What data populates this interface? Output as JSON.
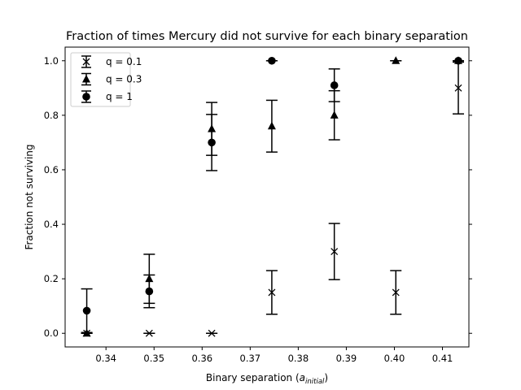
{
  "chart_data": {
    "type": "scatter",
    "title": "Fraction of times Mercury did not survive for each binary separation",
    "xlabel": "Binary separation (",
    "xlabel_math": "a",
    "xlabel_sub": "initial",
    "xlabel_close": ")",
    "ylabel": "Fraction not surviving",
    "xlim": [
      0.3315,
      0.4155
    ],
    "ylim": [
      -0.05,
      1.05
    ],
    "xticks": [
      0.34,
      0.35,
      0.36,
      0.37,
      0.38,
      0.39,
      0.4,
      0.41
    ],
    "xtick_labels": [
      "0.34",
      "0.35",
      "0.36",
      "0.37",
      "0.38",
      "0.39",
      "0.40",
      "0.41"
    ],
    "yticks": [
      0.0,
      0.2,
      0.4,
      0.6,
      0.8,
      1.0
    ],
    "ytick_labels": [
      "0.0",
      "0.2",
      "0.4",
      "0.6",
      "0.8",
      "1.0"
    ],
    "grid": false,
    "legend_position": "top-left",
    "series": [
      {
        "name": "q = 0.1",
        "marker": "x",
        "color": "#000000",
        "x": [
          0.336,
          0.349,
          0.362,
          0.3745,
          0.3875,
          0.4003,
          0.4133
        ],
        "y": [
          0.0,
          0.0,
          0.0,
          0.15,
          0.3,
          0.15,
          0.9
        ],
        "err": [
          0.0,
          0.0,
          0.0,
          0.08,
          0.103,
          0.08,
          0.095
        ]
      },
      {
        "name": "q = 0.3",
        "marker": "triangle",
        "color": "#000000",
        "x": [
          0.336,
          0.349,
          0.362,
          0.3745,
          0.3875,
          0.4003,
          0.4133
        ],
        "y": [
          0.0,
          0.2,
          0.75,
          0.76,
          0.8,
          1.0,
          1.0
        ],
        "err": [
          0.0,
          0.09,
          0.097,
          0.095,
          0.09,
          0.0,
          0.0
        ]
      },
      {
        "name": "q = 1",
        "marker": "circle",
        "color": "#000000",
        "x": [
          0.336,
          0.349,
          0.362,
          0.3745,
          0.3875,
          0.4003,
          0.4133
        ],
        "y": [
          0.083,
          0.154,
          0.7,
          1.0,
          0.91,
          null,
          1.0
        ],
        "err": [
          0.08,
          0.06,
          0.103,
          0.0,
          0.06,
          null,
          0.0
        ]
      }
    ]
  }
}
